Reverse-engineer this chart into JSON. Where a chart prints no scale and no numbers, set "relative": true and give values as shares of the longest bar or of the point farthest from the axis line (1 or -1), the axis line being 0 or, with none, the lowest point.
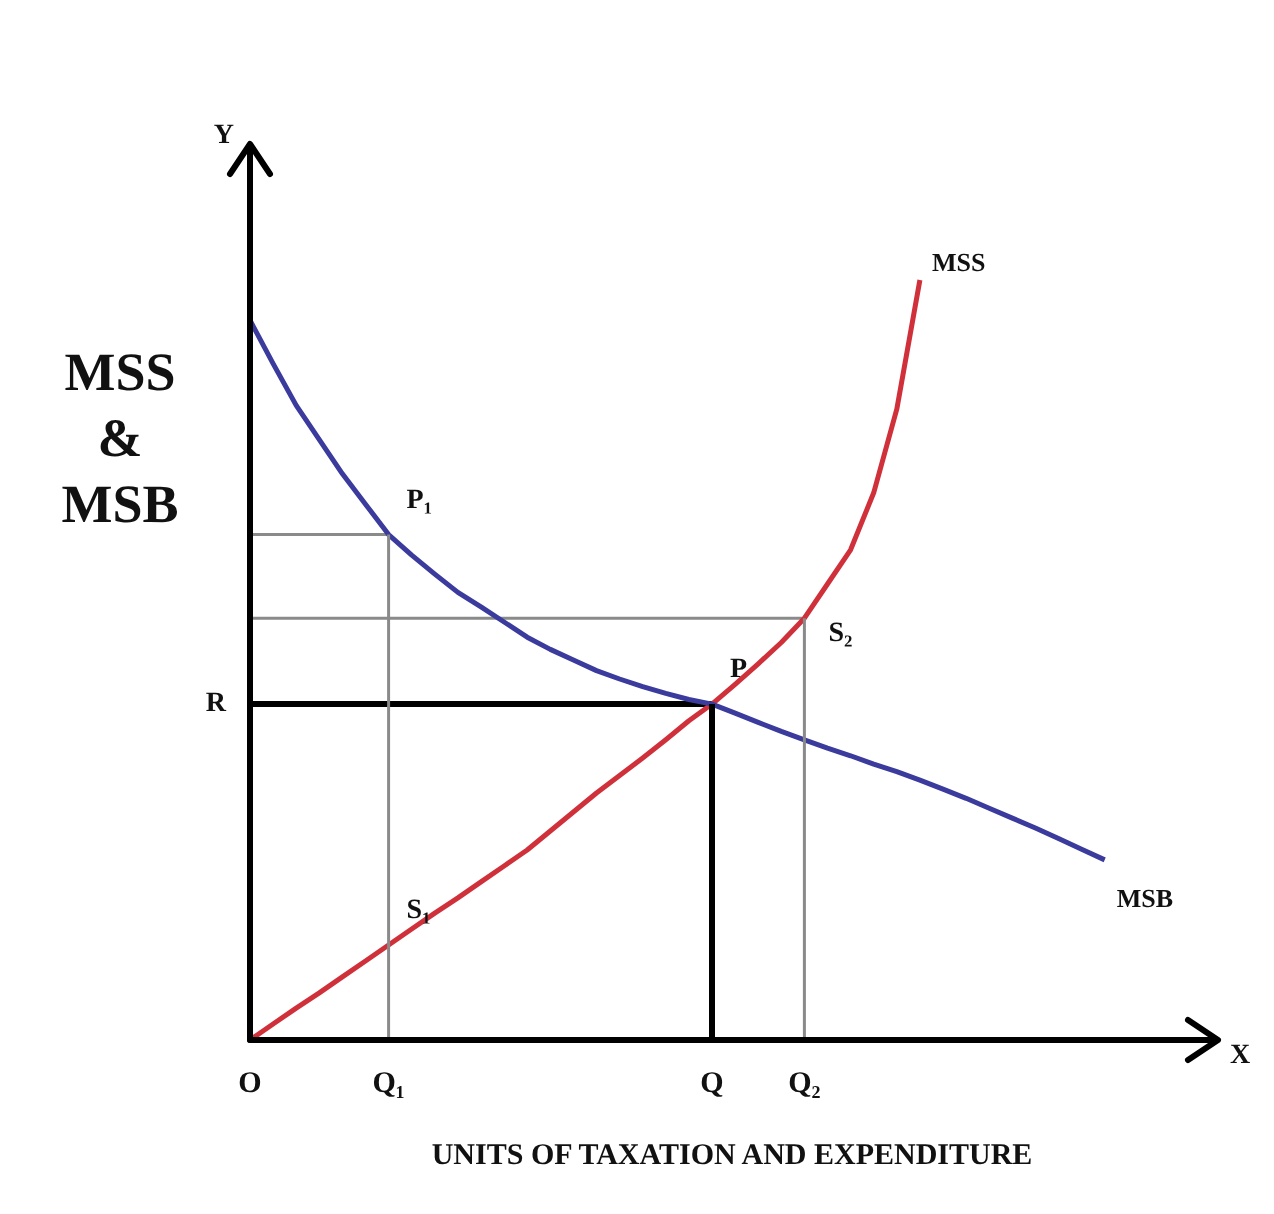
{
  "chart_data": {
    "type": "line",
    "relative": true,
    "xlabel": "UNITS OF TAXATION AND EXPENDITURE",
    "ylabel": "MSS & MSB",
    "categories": [
      "O",
      null,
      null,
      null,
      null,
      null,
      "Q₁",
      null,
      null,
      null,
      null,
      null,
      null,
      null,
      null,
      null,
      null,
      null,
      null,
      null,
      "Q",
      null,
      null,
      null,
      "Q₂",
      null,
      null,
      null,
      null,
      null,
      null,
      null,
      null,
      null,
      null,
      null,
      null,
      null,
      null,
      null,
      null
    ],
    "grid": false,
    "legend": false,
    "marker": "none",
    "line_style": "solid",
    "series": [
      {
        "name": "MSB",
        "color": "#3b3b9e",
        "values": [
          0.947,
          0.89,
          0.835,
          0.79,
          0.745,
          0.705,
          0.665,
          0.638,
          0.613,
          0.589,
          0.57,
          0.55,
          0.53,
          0.514,
          0.5,
          0.486,
          0.475,
          0.465,
          0.456,
          0.448,
          0.442,
          0.43,
          0.418,
          0.406,
          0.395,
          0.384,
          0.374,
          0.363,
          0.353,
          0.342,
          0.33,
          0.318,
          0.305,
          0.292,
          0.279,
          0.265,
          0.251,
          0.237,
          null,
          null,
          null
        ]
      },
      {
        "name": "MSS",
        "color": "#d0303a",
        "values": [
          0,
          0.021,
          0.042,
          0.062,
          0.083,
          0.104,
          0.125,
          0.146,
          0.167,
          0.187,
          0.208,
          0.229,
          0.25,
          0.275,
          0.3,
          0.325,
          0.348,
          0.371,
          0.395,
          0.42,
          0.442,
          0.468,
          0.495,
          0.523,
          0.555,
          0.6,
          0.645,
          0.72,
          0.83,
          1,
          null,
          null,
          null,
          null,
          null,
          null,
          null,
          null,
          null,
          null,
          null
        ]
      },
      {
        "color": "#8a8a8a",
        "values": [
          0.665,
          0.665,
          0.665,
          0.665,
          0.665,
          0.665,
          0.665,
          null,
          null,
          null,
          null,
          null,
          null,
          null,
          null,
          null,
          null,
          null,
          null,
          null,
          null,
          null,
          null,
          null,
          null,
          null,
          null,
          null,
          null,
          null,
          null,
          null,
          null,
          null,
          null,
          null,
          null,
          null,
          null,
          null,
          null
        ]
      },
      {
        "color": "#8a8a8a",
        "values": [
          0.555,
          0.555,
          0.555,
          0.555,
          0.555,
          0.555,
          0.555,
          0.555,
          0.555,
          0.555,
          0.555,
          0.555,
          0.555,
          0.555,
          0.555,
          0.555,
          0.555,
          0.555,
          0.555,
          0.555,
          0.555,
          0.555,
          0.555,
          0.555,
          0.555,
          null,
          null,
          null,
          null,
          null,
          null,
          null,
          null,
          null,
          null,
          null,
          null,
          null,
          null,
          null,
          null
        ]
      },
      {
        "color": "#000000",
        "values": [
          0.442,
          0.442,
          0.442,
          0.442,
          0.442,
          0.442,
          0.442,
          0.442,
          0.442,
          0.442,
          0.442,
          0.442,
          0.442,
          0.442,
          0.442,
          0.442,
          0.442,
          0.442,
          0.442,
          0.442,
          0.442,
          null,
          null,
          null,
          null,
          null,
          null,
          null,
          null,
          null,
          null,
          null,
          null,
          null,
          null,
          null,
          null,
          null,
          null,
          null,
          null
        ]
      }
    ],
    "ref_lines": [
      {
        "axis": "x",
        "value": "Q₁",
        "color": "#8a8a8a"
      },
      {
        "axis": "x",
        "value": "Q",
        "color": "#000000"
      },
      {
        "axis": "x",
        "value": "Q₂",
        "color": "#8a8a8a"
      }
    ],
    "annotations": [
      "Y",
      "X",
      {
        "text": "R",
        "x": "O",
        "y": 0.442
      },
      {
        "text": "P₁",
        "x": "Q₁",
        "y": 0.665
      },
      {
        "text": "P",
        "x": "Q",
        "y": 0.442
      },
      {
        "text": "S₁",
        "x": "Q₁",
        "y": 0.125
      },
      {
        "text": "S₂",
        "x": "Q₂",
        "y": 0.555
      }
    ]
  }
}
